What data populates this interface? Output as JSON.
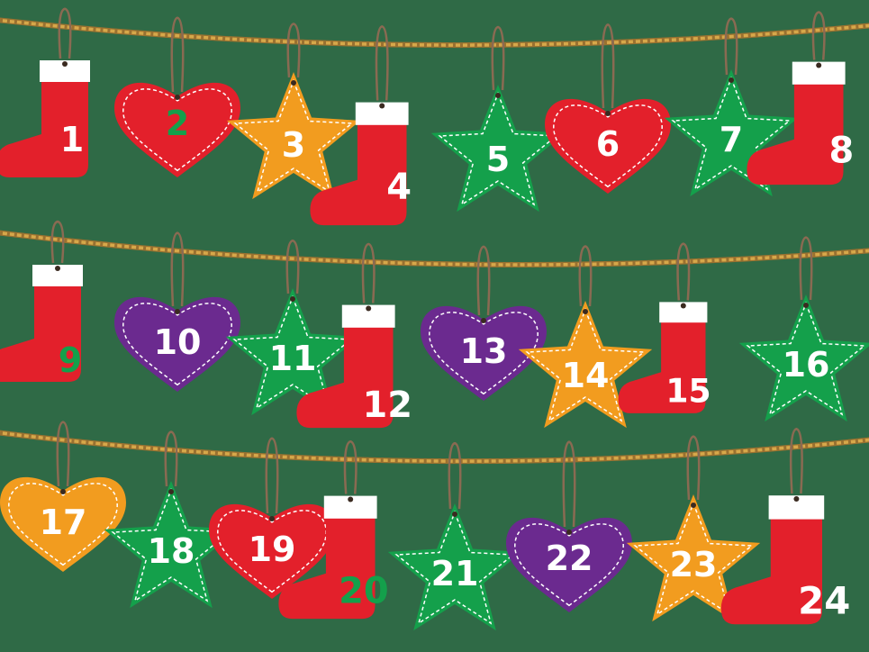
{
  "colors": {
    "background": "#2f6a46",
    "rope": "#d6a84a",
    "string": "#8a6a52",
    "red": "#e3202b",
    "green": "#14a04b",
    "orange": "#f29c1f",
    "purple": "#6b2a8f",
    "white": "#ffffff",
    "stitch": "#ffffff"
  },
  "ornaments": [
    {
      "number": "1",
      "shape": "sock",
      "color": "red",
      "text_color": "white"
    },
    {
      "number": "2",
      "shape": "heart",
      "color": "red",
      "text_color": "green"
    },
    {
      "number": "3",
      "shape": "star",
      "color": "orange",
      "text_color": "white"
    },
    {
      "number": "4",
      "shape": "sock",
      "color": "red",
      "text_color": "white"
    },
    {
      "number": "5",
      "shape": "star",
      "color": "green",
      "text_color": "white"
    },
    {
      "number": "6",
      "shape": "heart",
      "color": "red",
      "text_color": "white"
    },
    {
      "number": "7",
      "shape": "star",
      "color": "green",
      "text_color": "white"
    },
    {
      "number": "8",
      "shape": "sock",
      "color": "red",
      "text_color": "white"
    },
    {
      "number": "9",
      "shape": "sock",
      "color": "red",
      "text_color": "green"
    },
    {
      "number": "10",
      "shape": "heart",
      "color": "purple",
      "text_color": "white"
    },
    {
      "number": "11",
      "shape": "star",
      "color": "green",
      "text_color": "white"
    },
    {
      "number": "12",
      "shape": "sock",
      "color": "red",
      "text_color": "white"
    },
    {
      "number": "13",
      "shape": "heart",
      "color": "purple",
      "text_color": "white"
    },
    {
      "number": "14",
      "shape": "star",
      "color": "orange",
      "text_color": "white"
    },
    {
      "number": "15",
      "shape": "sock",
      "color": "red",
      "text_color": "white"
    },
    {
      "number": "16",
      "shape": "star",
      "color": "green",
      "text_color": "white"
    },
    {
      "number": "17",
      "shape": "heart",
      "color": "orange",
      "text_color": "white"
    },
    {
      "number": "18",
      "shape": "star",
      "color": "green",
      "text_color": "white"
    },
    {
      "number": "19",
      "shape": "heart",
      "color": "red",
      "text_color": "white"
    },
    {
      "number": "20",
      "shape": "sock",
      "color": "red",
      "text_color": "green"
    },
    {
      "number": "21",
      "shape": "star",
      "color": "green",
      "text_color": "white"
    },
    {
      "number": "22",
      "shape": "heart",
      "color": "purple",
      "text_color": "white"
    },
    {
      "number": "23",
      "shape": "star",
      "color": "orange",
      "text_color": "white"
    },
    {
      "number": "24",
      "shape": "sock",
      "color": "red",
      "text_color": "white"
    }
  ]
}
